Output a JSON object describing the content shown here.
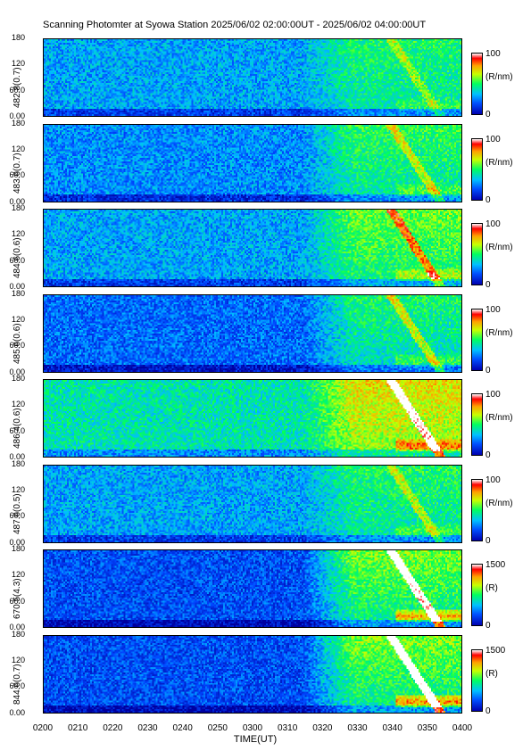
{
  "chart_data": {
    "type": "heatmap",
    "title": "Scanning Photomter at Syowa Station  2025/06/02 02:00:00UT - 2025/06/02 04:00:00UT",
    "xlabel": "TIME(UT)",
    "x_ticks": [
      "0200",
      "0210",
      "0220",
      "0230",
      "0240",
      "0250",
      "0300",
      "0310",
      "0320",
      "0330",
      "0340",
      "0350",
      "0400"
    ],
    "xlim": [
      "0200",
      "0400"
    ],
    "y_ticks": [
      "0.00",
      "60.0",
      "120",
      "180"
    ],
    "ylim": [
      0,
      180
    ],
    "panels": [
      {
        "ylabel": "482.8(0.7)",
        "cbar_min": "0",
        "cbar_max": "100",
        "cbar_unit": "(R/nm)",
        "base": 0.3,
        "event": 0.2,
        "arc": 0.15
      },
      {
        "ylabel": "483.6(0.7)",
        "cbar_min": "0",
        "cbar_max": "100",
        "cbar_unit": "(R/nm)",
        "base": 0.27,
        "event": 0.25,
        "arc": 0.2
      },
      {
        "ylabel": "484.6(0.6)",
        "cbar_min": "0",
        "cbar_max": "100",
        "cbar_unit": "(R/nm)",
        "base": 0.3,
        "event": 0.28,
        "arc": 0.3
      },
      {
        "ylabel": "485.6(0.6)",
        "cbar_min": "0",
        "cbar_max": "100",
        "cbar_unit": "(R/nm)",
        "base": 0.22,
        "event": 0.27,
        "arc": 0.22
      },
      {
        "ylabel": "486.4(0.6)",
        "cbar_min": "0",
        "cbar_max": "100",
        "cbar_unit": "(R/nm)",
        "base": 0.42,
        "event": 0.3,
        "arc": 0.4
      },
      {
        "ylabel": "487.6(0.5)",
        "cbar_min": "0",
        "cbar_max": "100",
        "cbar_unit": "(R/nm)",
        "base": 0.3,
        "event": 0.2,
        "arc": 0.18
      },
      {
        "ylabel": "670.5(4.3)",
        "cbar_min": "0",
        "cbar_max": "1500",
        "cbar_unit": "(R)",
        "base": 0.18,
        "event": 0.42,
        "arc": 0.55
      },
      {
        "ylabel": "844.6(0.7)",
        "cbar_min": "0",
        "cbar_max": "1500",
        "cbar_unit": "(R)",
        "base": 0.18,
        "event": 0.42,
        "arc": 0.6
      }
    ]
  }
}
